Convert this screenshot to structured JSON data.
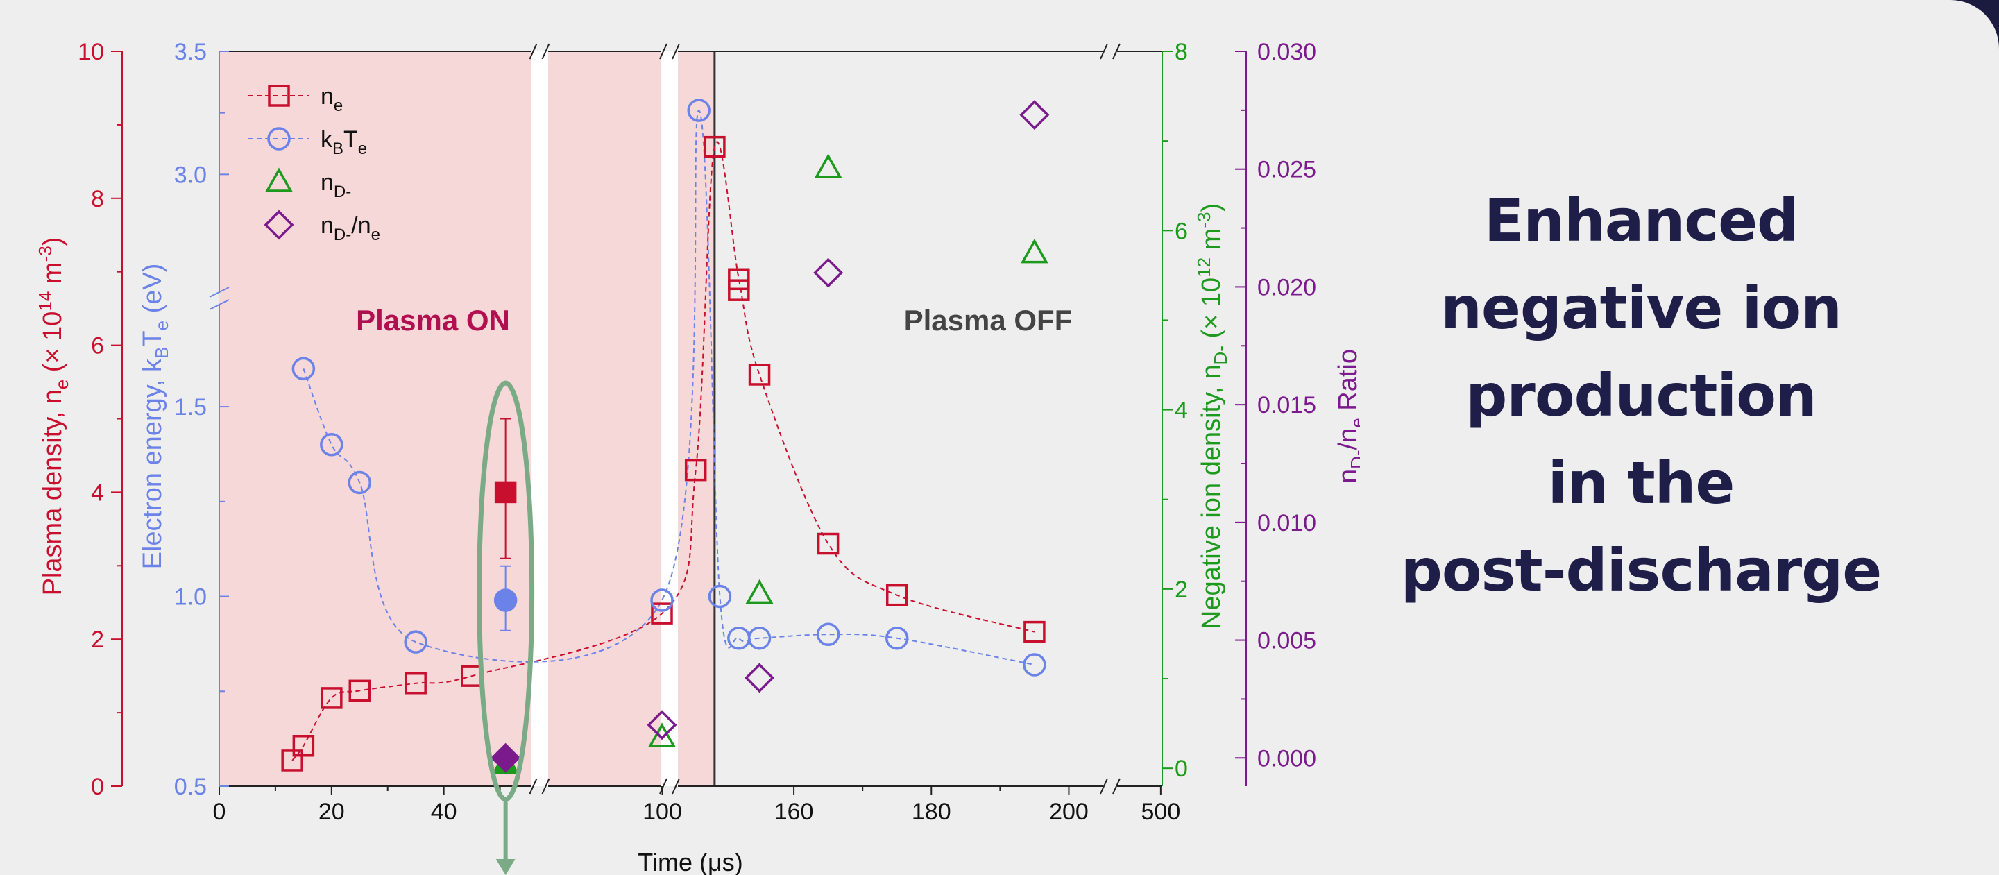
{
  "headline": {
    "lines": [
      "Enhanced",
      "negative ion",
      "production",
      "in the",
      "post-discharge"
    ]
  },
  "colors": {
    "background": "#eeeeee",
    "plasma_on_band": "#f6d8d9",
    "n_e": "#c8102e",
    "kBTe": "#6b83e8",
    "nD_minus": "#1d9a1d",
    "ratio": "#7b1a8c",
    "headline": "#1e1e48",
    "highlight_ellipse": "#7aaa86",
    "slate_frame": "#1b1b3f"
  },
  "annotations": {
    "plasma_on": "Plasma ON",
    "plasma_off": "Plasma OFF"
  },
  "chart_data": {
    "type": "scatter",
    "title": "",
    "xlabel": "Time (μs)",
    "x_segments": [
      {
        "range": [
          0,
          55
        ],
        "ticks": [
          "0",
          "20",
          "40"
        ]
      },
      {
        "range": [
          55,
          85
        ],
        "ticks": []
      },
      {
        "range": [
          85,
          105
        ],
        "ticks": [
          "100"
        ]
      },
      {
        "range": [
          105,
          150
        ],
        "ticks": []
      },
      {
        "range": [
          150,
          205
        ],
        "ticks": [
          "160",
          "180",
          "200"
        ]
      },
      {
        "range": [
          205,
          510
        ],
        "ticks": [
          "500"
        ]
      }
    ],
    "plasma_on_regions": [
      [
        0,
        140
      ]
    ],
    "plasma_off_start": 140,
    "axes": {
      "n_e": {
        "label_parts": [
          "Plasma density, n",
          "e",
          " (× 10",
          "14",
          " m",
          "-3",
          ")"
        ],
        "ylim": [
          0,
          10
        ],
        "ticks": [
          "0",
          "2",
          "4",
          "6",
          "8",
          "10"
        ]
      },
      "kBTe": {
        "label_parts": [
          "Electron energy, k",
          "B",
          "T",
          "e",
          " (eV)"
        ],
        "ylim": [
          0.5,
          3.5
        ],
        "broken_between": [
          1.8,
          2.75
        ],
        "ticks": [
          "0.5",
          "1.0",
          "1.5",
          "3.0",
          "3.5"
        ]
      },
      "nD_minus": {
        "label_parts": [
          "Negative ion density, n",
          "D-",
          " (× 10",
          "12",
          " m",
          "-3",
          ")"
        ],
        "ylim": [
          -0.2,
          8
        ],
        "ticks": [
          "0",
          "2",
          "4",
          "6",
          "8"
        ]
      },
      "ratio": {
        "label_parts": [
          "n",
          "D-",
          "/n",
          "e",
          " Ratio"
        ],
        "ylim": [
          -0.0012,
          0.03
        ],
        "ticks": [
          "0.000",
          "0.005",
          "0.010",
          "0.015",
          "0.020",
          "0.025",
          "0.030"
        ]
      }
    },
    "legend": {
      "placement": "top-left",
      "entries": [
        {
          "series": "n_e",
          "parts": [
            "n",
            "e"
          ]
        },
        {
          "series": "kBTe",
          "parts": [
            "k",
            "B",
            "T",
            "e"
          ]
        },
        {
          "series": "nD_minus",
          "parts": [
            "n",
            "D-"
          ]
        },
        {
          "series": "ratio",
          "parts": [
            "n",
            "D-",
            "/n",
            "e"
          ]
        }
      ]
    },
    "series": [
      {
        "id": "n_e",
        "axis": "n_e",
        "marker": "square",
        "open": true,
        "line": true,
        "points": [
          {
            "x": 13,
            "y": 0.35
          },
          {
            "x": 15,
            "y": 0.55
          },
          {
            "x": 20,
            "y": 1.2
          },
          {
            "x": 25,
            "y": 1.3
          },
          {
            "x": 35,
            "y": 1.4
          },
          {
            "x": 45,
            "y": 1.5
          },
          {
            "x": 95,
            "y": 2.35
          },
          {
            "x": 122,
            "y": 4.3
          },
          {
            "x": 140,
            "y": 8.7
          },
          {
            "x": 152,
            "y": 6.9
          },
          {
            "x": 152,
            "y": 6.75
          },
          {
            "x": 155,
            "y": 5.6
          },
          {
            "x": 165,
            "y": 3.3
          },
          {
            "x": 175,
            "y": 2.6
          },
          {
            "x": 195,
            "y": 2.1
          }
        ]
      },
      {
        "id": "kBTe",
        "axis": "kBTe",
        "marker": "circle",
        "open": true,
        "line": true,
        "points": [
          {
            "x": 15,
            "y": 1.6
          },
          {
            "x": 20,
            "y": 1.4
          },
          {
            "x": 25,
            "y": 1.3
          },
          {
            "x": 35,
            "y": 0.88
          },
          {
            "x": 95,
            "y": 0.99
          },
          {
            "x": 125,
            "y": 3.26
          },
          {
            "x": 145,
            "y": 1.0
          },
          {
            "x": 152,
            "y": 0.89
          },
          {
            "x": 155,
            "y": 0.89
          },
          {
            "x": 165,
            "y": 0.9
          },
          {
            "x": 175,
            "y": 0.89
          },
          {
            "x": 195,
            "y": 0.82
          }
        ]
      },
      {
        "id": "nD_minus",
        "axis": "nD_minus",
        "marker": "triangle",
        "open": true,
        "line": false,
        "points": [
          {
            "x": 95,
            "y": 0.35
          },
          {
            "x": 155,
            "y": 1.95
          },
          {
            "x": 165,
            "y": 6.7
          },
          {
            "x": 195,
            "y": 5.75
          }
        ]
      },
      {
        "id": "ratio",
        "axis": "ratio",
        "marker": "diamond",
        "open": true,
        "line": false,
        "points": [
          {
            "x": 95,
            "y": 0.0014
          },
          {
            "x": 155,
            "y": 0.0034
          },
          {
            "x": 165,
            "y": 0.0206
          },
          {
            "x": 195,
            "y": 0.0273
          }
        ]
      },
      {
        "id": "n_e_filled",
        "axis": "n_e",
        "marker": "square",
        "open": false,
        "line": false,
        "points": [
          {
            "x": 51,
            "y": 4.0,
            "err": [
              3.1,
              5.0
            ]
          }
        ]
      },
      {
        "id": "kBTe_filled",
        "axis": "kBTe",
        "marker": "circle",
        "open": false,
        "line": false,
        "points": [
          {
            "x": 51,
            "y": 0.99,
            "err": [
              0.91,
              1.08
            ]
          }
        ]
      },
      {
        "id": "nD_minus_filled",
        "axis": "nD_minus",
        "marker": "triangle",
        "open": false,
        "line": false,
        "points": [
          {
            "x": 51,
            "y": 0.05
          }
        ]
      },
      {
        "id": "ratio_filled",
        "axis": "ratio",
        "marker": "diamond",
        "open": false,
        "line": false,
        "points": [
          {
            "x": 51,
            "y": 0.0
          }
        ]
      }
    ]
  }
}
